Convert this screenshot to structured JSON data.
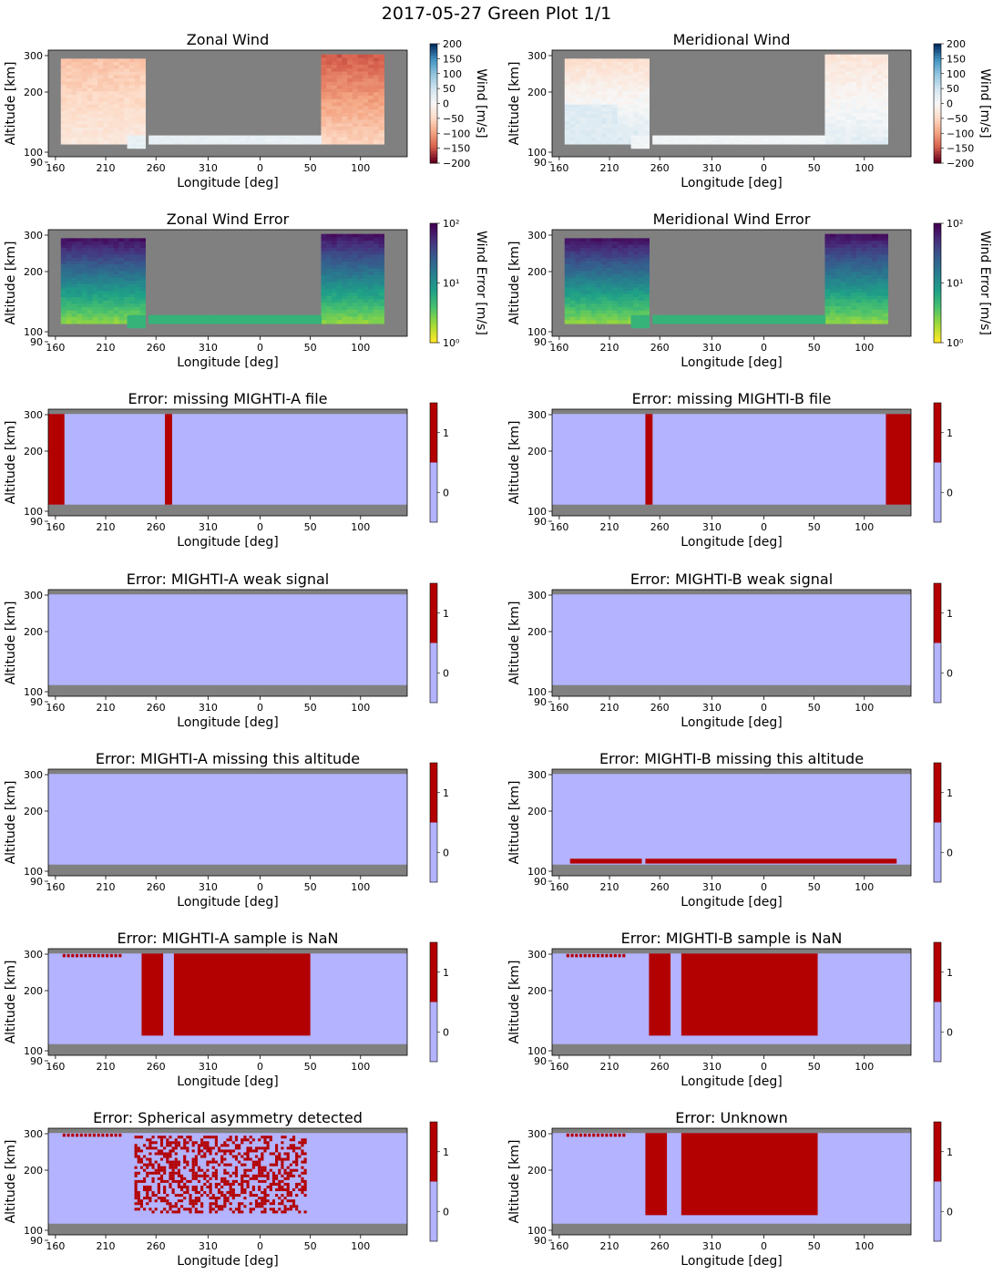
{
  "suptitle": "2017-05-27 Green Plot 1/1",
  "colors": {
    "nodata": "#808080",
    "flag_off": "#b3b3ff",
    "flag_on": "#b30000"
  },
  "axes": {
    "xlabel": "Longitude [deg]",
    "ylabel": "Altitude [km]",
    "x_ticks": [
      "160",
      "210",
      "260",
      "310",
      "0",
      "50",
      "100"
    ],
    "y_ticks": [
      "300",
      "200",
      "100",
      "90"
    ]
  },
  "chart_data": [
    {
      "type": "heatmap",
      "title": "Zonal Wind",
      "xlabel": "Longitude [deg]",
      "ylabel": "Altitude [km]",
      "colorbar": {
        "label": "Wind [m/s]",
        "ticks": [
          "200",
          "150",
          "100",
          "50",
          "0",
          "−50",
          "−100",
          "−150",
          "−200"
        ],
        "range": [
          -200,
          200
        ],
        "cmap": "RdBu"
      }
    },
    {
      "type": "heatmap",
      "title": "Meridional Wind",
      "xlabel": "Longitude [deg]",
      "ylabel": "Altitude [km]",
      "colorbar": {
        "label": "Wind [m/s]",
        "ticks": [
          "200",
          "150",
          "100",
          "50",
          "0",
          "−50",
          "−100",
          "−150",
          "−200"
        ],
        "range": [
          -200,
          200
        ],
        "cmap": "RdBu"
      }
    },
    {
      "type": "heatmap",
      "title": "Zonal Wind Error",
      "xlabel": "Longitude [deg]",
      "ylabel": "Altitude [km]",
      "colorbar": {
        "label": "Wind Error [m/s]",
        "ticks": [
          "10²",
          "10¹",
          "10⁰"
        ],
        "range": [
          1,
          100
        ],
        "scale": "log",
        "cmap": "viridis_r"
      }
    },
    {
      "type": "heatmap",
      "title": "Meridional Wind Error",
      "xlabel": "Longitude [deg]",
      "ylabel": "Altitude [km]",
      "colorbar": {
        "label": "Wind Error [m/s]",
        "ticks": [
          "10²",
          "10¹",
          "10⁰"
        ],
        "range": [
          1,
          100
        ],
        "scale": "log",
        "cmap": "viridis_r"
      }
    },
    {
      "type": "heatmap",
      "title": "Error: missing MIGHTI-A file",
      "xlabel": "Longitude [deg]",
      "ylabel": "Altitude [km]",
      "colorbar": {
        "ticks": [
          "1",
          "0"
        ]
      }
    },
    {
      "type": "heatmap",
      "title": "Error: missing MIGHTI-B file",
      "xlabel": "Longitude [deg]",
      "ylabel": "Altitude [km]",
      "colorbar": {
        "ticks": [
          "1",
          "0"
        ]
      }
    },
    {
      "type": "heatmap",
      "title": "Error: MIGHTI-A weak signal",
      "xlabel": "Longitude [deg]",
      "ylabel": "Altitude [km]",
      "colorbar": {
        "ticks": [
          "1",
          "0"
        ]
      }
    },
    {
      "type": "heatmap",
      "title": "Error: MIGHTI-B weak signal",
      "xlabel": "Longitude [deg]",
      "ylabel": "Altitude [km]",
      "colorbar": {
        "ticks": [
          "1",
          "0"
        ]
      }
    },
    {
      "type": "heatmap",
      "title": "Error: MIGHTI-A missing this altitude",
      "xlabel": "Longitude [deg]",
      "ylabel": "Altitude [km]",
      "colorbar": {
        "ticks": [
          "1",
          "0"
        ]
      }
    },
    {
      "type": "heatmap",
      "title": "Error: MIGHTI-B missing this altitude",
      "xlabel": "Longitude [deg]",
      "ylabel": "Altitude [km]",
      "colorbar": {
        "ticks": [
          "1",
          "0"
        ]
      }
    },
    {
      "type": "heatmap",
      "title": "Error: MIGHTI-A sample is NaN",
      "xlabel": "Longitude [deg]",
      "ylabel": "Altitude [km]",
      "colorbar": {
        "ticks": [
          "1",
          "0"
        ]
      }
    },
    {
      "type": "heatmap",
      "title": "Error: MIGHTI-B sample is NaN",
      "xlabel": "Longitude [deg]",
      "ylabel": "Altitude [km]",
      "colorbar": {
        "ticks": [
          "1",
          "0"
        ]
      }
    },
    {
      "type": "heatmap",
      "title": "Error: Spherical asymmetry detected",
      "xlabel": "Longitude [deg]",
      "ylabel": "Altitude [km]",
      "colorbar": {
        "ticks": [
          "1",
          "0"
        ]
      }
    },
    {
      "type": "heatmap",
      "title": "Error: Unknown",
      "xlabel": "Longitude [deg]",
      "ylabel": "Altitude [km]",
      "colorbar": {
        "ticks": [
          "1",
          "0"
        ]
      }
    }
  ]
}
